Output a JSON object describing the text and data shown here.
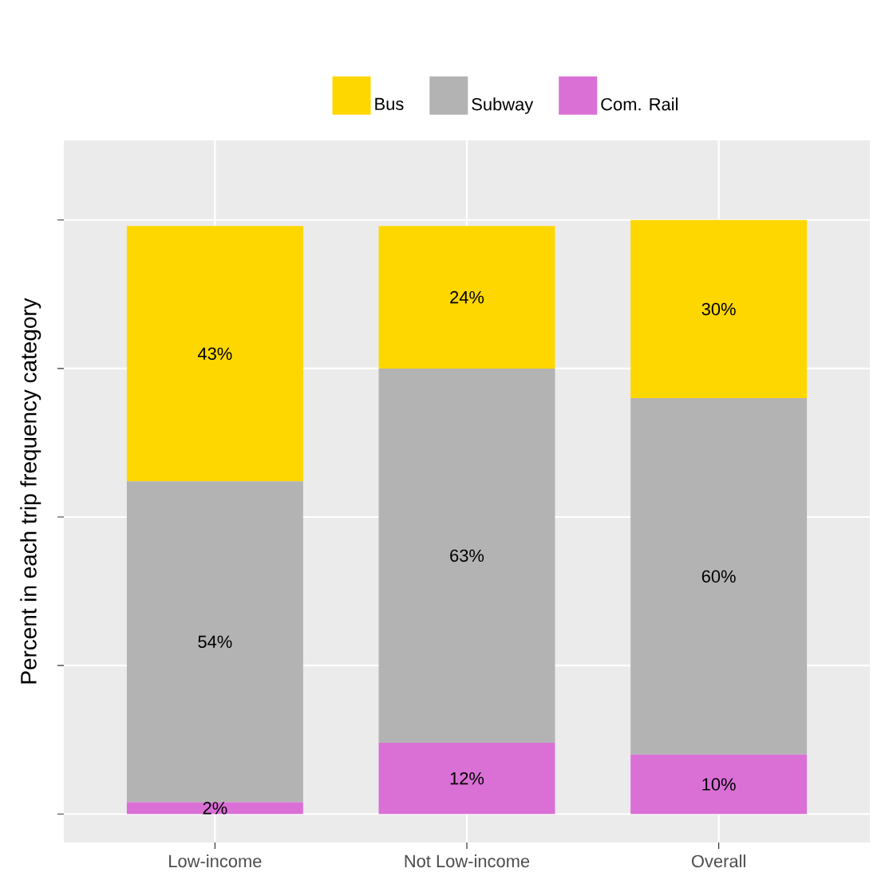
{
  "chart_data": {
    "type": "bar",
    "stacked": true,
    "ylabel": "Percent in each trip frequency category",
    "categories": [
      "Low-income",
      "Not Low-income",
      "Overall"
    ],
    "series": [
      {
        "name": "Com. Rail",
        "color": "#da70d6",
        "values": [
          2,
          12,
          10
        ],
        "value_labels": [
          "2%",
          "12%",
          "10%"
        ]
      },
      {
        "name": "Subway",
        "color": "#b3b3b3",
        "values": [
          54,
          63,
          60
        ],
        "value_labels": [
          "54%",
          "63%",
          "60%"
        ]
      },
      {
        "name": "Bus",
        "color": "#ffd700",
        "values": [
          43,
          24,
          30
        ],
        "value_labels": [
          "43%",
          "24%",
          "30%"
        ]
      }
    ],
    "ylim": [
      -4.8,
      113.4
    ],
    "yticks": [
      {
        "value": 0,
        "label": null
      },
      {
        "value": 25,
        "label": null
      },
      {
        "value": 50,
        "label": null
      },
      {
        "value": 75,
        "label": null
      },
      {
        "value": 100,
        "label": null
      }
    ],
    "tick_labels": "x",
    "grid": true,
    "legend": "top"
  }
}
